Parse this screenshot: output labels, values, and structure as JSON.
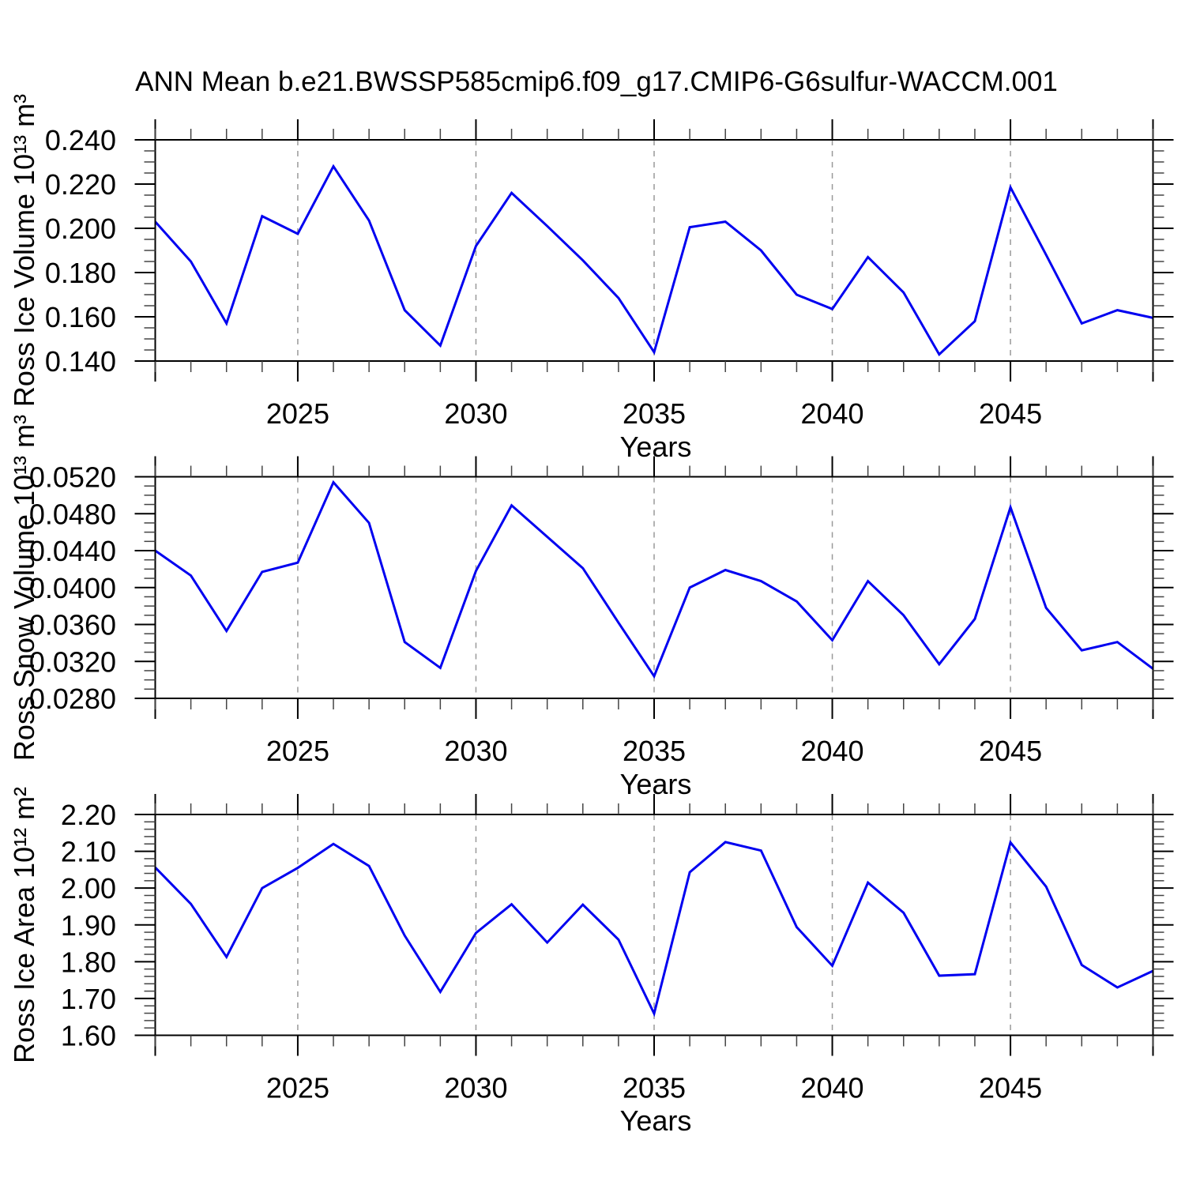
{
  "title": "ANN Mean b.e21.BWSSP585cmip6.f09_g17.CMIP6-G6sulfur-WACCM.001",
  "chart_data": [
    {
      "type": "line",
      "name": "ross-ice-volume",
      "ylabel": "Ross Ice Volume 10¹³ m³",
      "xlabel": "Years",
      "line_color": "#0000f0",
      "gridline_color": "#999999",
      "legend": "none",
      "grid": "dashed vertical at major x ticks",
      "ylim": [
        0.14,
        0.24
      ],
      "yticks": [
        0.14,
        0.16,
        0.18,
        0.2,
        0.22,
        0.24
      ],
      "ytick_labels": [
        "0.140",
        "0.160",
        "0.180",
        "0.200",
        "0.220",
        "0.240"
      ],
      "ytick_minor_step": 0.005,
      "xlim": [
        2021,
        2049
      ],
      "xticks_major": [
        2025,
        2030,
        2035,
        2040,
        2045
      ],
      "xtick_labels": [
        "2025",
        "2030",
        "2035",
        "2040",
        "2045"
      ],
      "x": [
        2021,
        2022,
        2023,
        2024,
        2025,
        2026,
        2027,
        2028,
        2029,
        2030,
        2031,
        2032,
        2033,
        2034,
        2035,
        2036,
        2037,
        2038,
        2039,
        2040,
        2041,
        2042,
        2043,
        2044,
        2045,
        2046,
        2047,
        2048,
        2049
      ],
      "values": [
        0.203,
        0.185,
        0.157,
        0.2055,
        0.1975,
        0.228,
        0.2035,
        0.163,
        0.147,
        0.192,
        0.216,
        0.201,
        0.1855,
        0.1685,
        0.144,
        0.2005,
        0.203,
        0.19,
        0.17,
        0.1635,
        0.187,
        0.171,
        0.143,
        0.158,
        0.2185,
        0.188,
        0.157,
        0.163,
        0.1595
      ]
    },
    {
      "type": "line",
      "name": "ross-snow-volume",
      "ylabel": "Ross Snow Volume 10¹³ m³",
      "xlabel": "Years",
      "line_color": "#0000f0",
      "gridline_color": "#999999",
      "legend": "none",
      "grid": "dashed vertical at major x ticks",
      "ylim": [
        0.028,
        0.052
      ],
      "yticks": [
        0.028,
        0.032,
        0.036,
        0.04,
        0.044,
        0.048,
        0.052
      ],
      "ytick_labels": [
        "0.0280",
        "0.0320",
        "0.0360",
        "0.0400",
        "0.0440",
        "0.0480",
        "0.0520"
      ],
      "ytick_minor_step": 0.001,
      "xlim": [
        2021,
        2049
      ],
      "xticks_major": [
        2025,
        2030,
        2035,
        2040,
        2045
      ],
      "xtick_labels": [
        "2025",
        "2030",
        "2035",
        "2040",
        "2045"
      ],
      "x": [
        2021,
        2022,
        2023,
        2024,
        2025,
        2026,
        2027,
        2028,
        2029,
        2030,
        2031,
        2032,
        2033,
        2034,
        2035,
        2036,
        2037,
        2038,
        2039,
        2040,
        2041,
        2042,
        2043,
        2044,
        2045,
        2046,
        2047,
        2048,
        2049
      ],
      "values": [
        0.044,
        0.0413,
        0.0353,
        0.0417,
        0.0427,
        0.0514,
        0.047,
        0.0341,
        0.0313,
        0.0418,
        0.0489,
        0.0455,
        0.0421,
        0.0362,
        0.0304,
        0.04,
        0.0419,
        0.0407,
        0.0385,
        0.0343,
        0.0407,
        0.037,
        0.0317,
        0.0366,
        0.0487,
        0.0378,
        0.0332,
        0.0341,
        0.0312
      ]
    },
    {
      "type": "line",
      "name": "ross-ice-area",
      "ylabel": "Ross Ice Area 10¹² m²",
      "xlabel": "Years",
      "line_color": "#0000f0",
      "gridline_color": "#999999",
      "legend": "none",
      "grid": "dashed vertical at major x ticks",
      "ylim": [
        1.6,
        2.2
      ],
      "yticks": [
        1.6,
        1.7,
        1.8,
        1.9,
        2.0,
        2.1,
        2.2
      ],
      "ytick_labels": [
        "1.60",
        "1.70",
        "1.80",
        "1.90",
        "2.00",
        "2.10",
        "2.20"
      ],
      "ytick_minor_step": 0.02,
      "xlim": [
        2021,
        2049
      ],
      "xticks_major": [
        2025,
        2030,
        2035,
        2040,
        2045
      ],
      "xtick_labels": [
        "2025",
        "2030",
        "2035",
        "2040",
        "2045"
      ],
      "x": [
        2021,
        2022,
        2023,
        2024,
        2025,
        2026,
        2027,
        2028,
        2029,
        2030,
        2031,
        2032,
        2033,
        2034,
        2035,
        2036,
        2037,
        2038,
        2039,
        2040,
        2041,
        2042,
        2043,
        2044,
        2045,
        2046,
        2047,
        2048,
        2049
      ],
      "values": [
        2.056,
        1.957,
        1.813,
        2.0,
        2.055,
        2.12,
        2.06,
        1.871,
        1.718,
        1.878,
        1.956,
        1.852,
        1.955,
        1.86,
        1.659,
        2.043,
        2.125,
        2.102,
        1.894,
        1.789,
        2.015,
        1.933,
        1.762,
        1.766,
        2.124,
        2.004,
        1.791,
        1.73,
        1.775
      ]
    }
  ]
}
